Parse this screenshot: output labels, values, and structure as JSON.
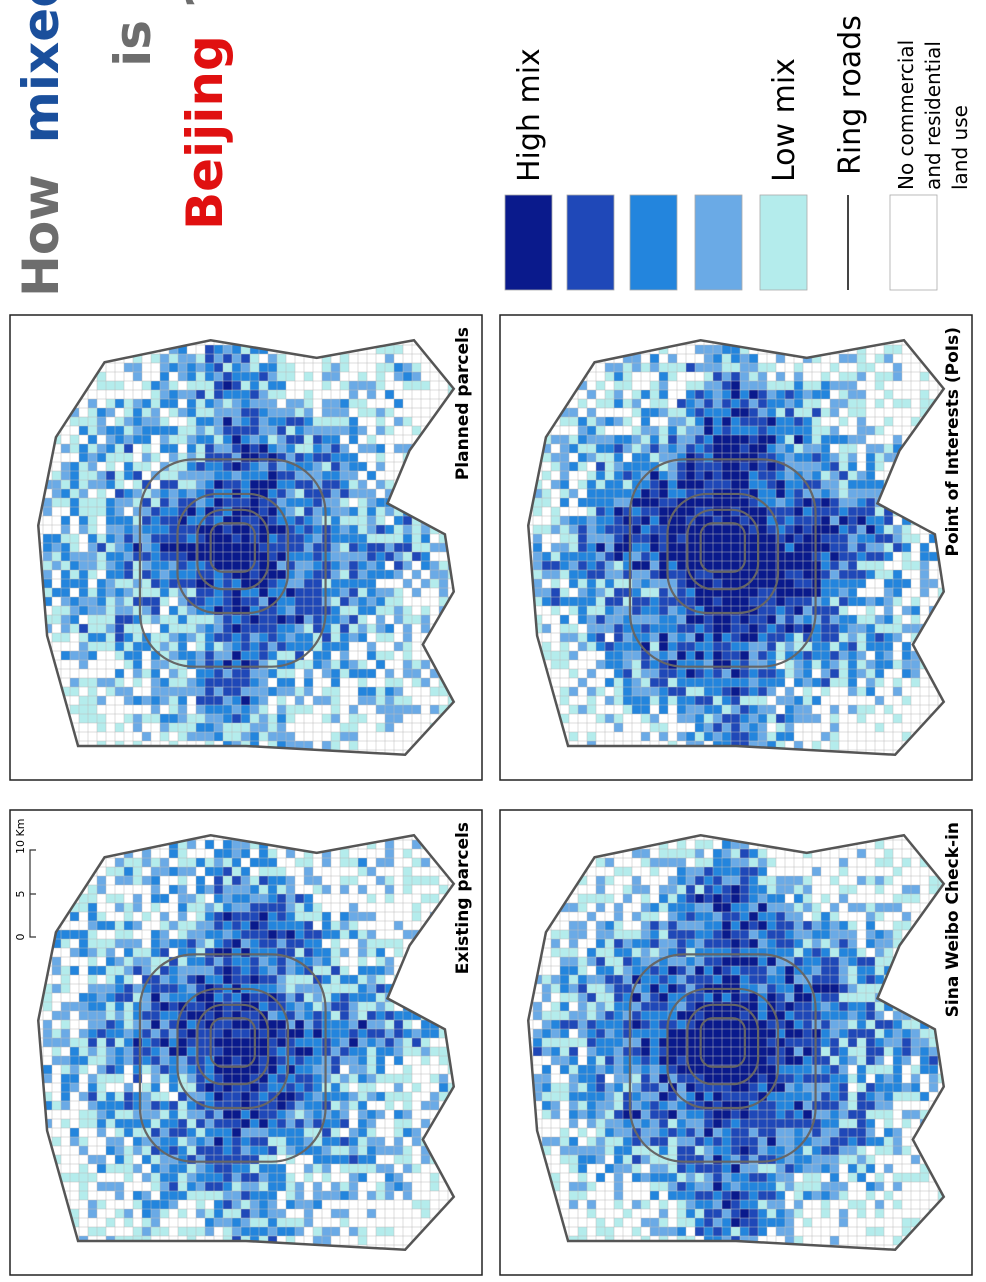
{
  "title": {
    "parts": [
      {
        "text": "How",
        "color": "#6d6d6d"
      },
      {
        "text": "mixed",
        "color": "#1a4f9c"
      },
      {
        "text": "is",
        "color": "#6d6d6d"
      },
      {
        "text": "Beijing",
        "color": "#e01010"
      },
      {
        "text": "?",
        "color": "#6d6d6d"
      }
    ]
  },
  "legend": {
    "items": [
      {
        "label": "High mix",
        "color": "#0a1a8c"
      },
      {
        "color": "#1f48b8"
      },
      {
        "color": "#2385dd"
      },
      {
        "color": "#6aaae6"
      },
      {
        "label": "Low mix",
        "color": "#b4ecec"
      }
    ],
    "ring_roads": "Ring roads",
    "no_use": [
      "No commercial",
      "and residential",
      "land use"
    ]
  },
  "panels": [
    {
      "title": "Existing parcels"
    },
    {
      "title": "Planned parcels"
    },
    {
      "title": "Sina Weibo Check-in"
    },
    {
      "title": "Point of Interests (PoIs)"
    }
  ],
  "scale_bar": {
    "ticks": [
      "0",
      "5",
      "10 Km"
    ]
  }
}
